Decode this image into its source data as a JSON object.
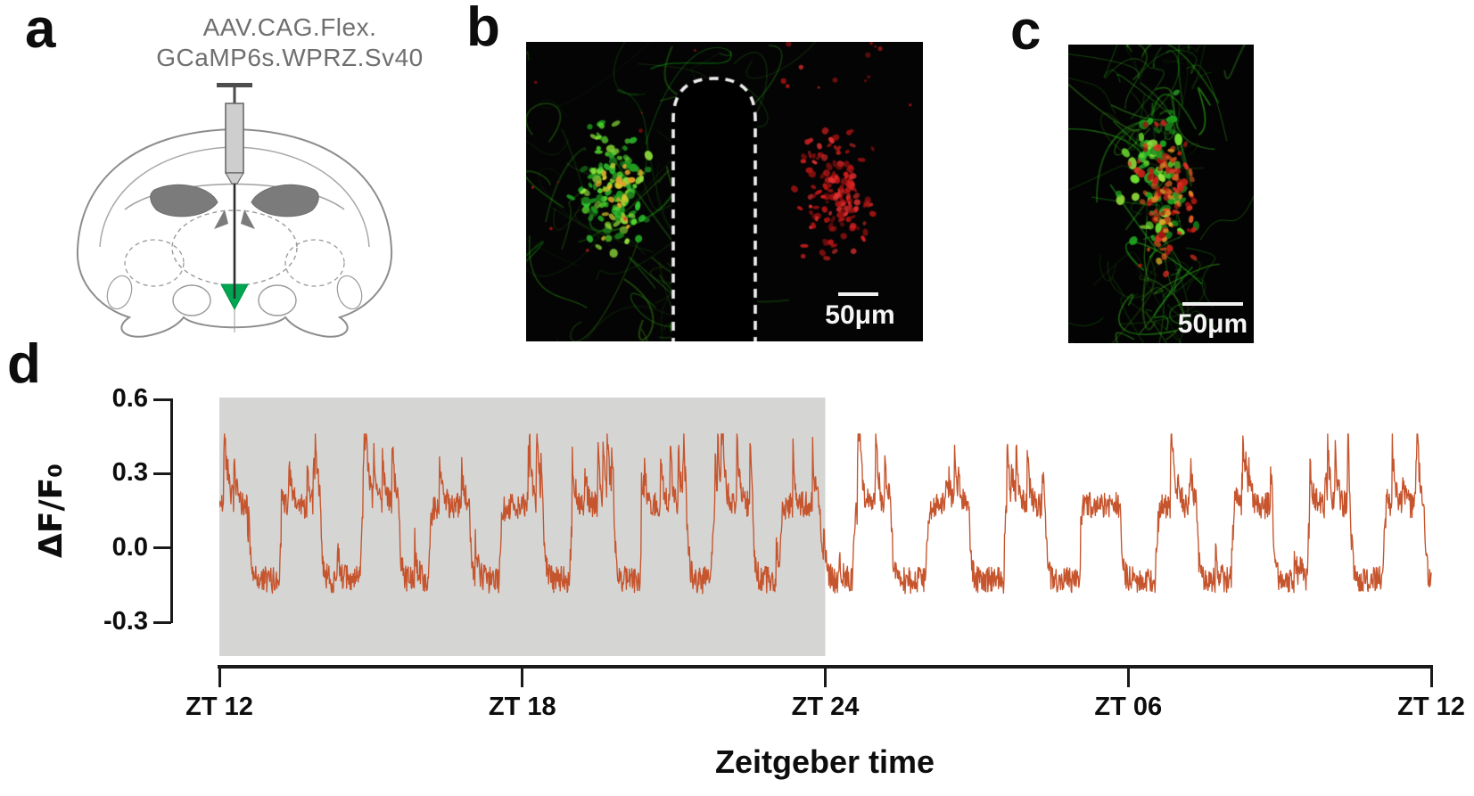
{
  "figure_labels": {
    "a": "a",
    "b": "b",
    "c": "c",
    "d": "d"
  },
  "panel_a": {
    "injection_line1": "AAV.CAG.Flex.",
    "injection_line2": "GCaMP6s.WPRZ.Sv40",
    "injection_site_color": "#00a651"
  },
  "panel_b": {
    "scale_bar_label": "50μm",
    "gcamp_color": "#2fc42f",
    "marker_color": "#d42020"
  },
  "panel_c": {
    "scale_bar_label": "50μm"
  },
  "chart_data": {
    "type": "line",
    "title": "",
    "xlabel": "Zeitgeber time",
    "ylabel": "ΔF/F₀",
    "x_tick_labels": [
      "ZT 12",
      "ZT 18",
      "ZT 24",
      "ZT 06",
      "ZT 12"
    ],
    "x_tick_hours": [
      0,
      6,
      12,
      18,
      24
    ],
    "x_range_hours": [
      0,
      24
    ],
    "y_tick_labels": [
      "0.6",
      "0.3",
      "0.0",
      "-0.3"
    ],
    "y_ticks": [
      0.6,
      0.3,
      0.0,
      -0.3
    ],
    "ylim": [
      -0.42,
      0.6
    ],
    "grid": false,
    "legend": "none",
    "line_color": "#c6542c",
    "shading": {
      "from_hour": 0,
      "to_hour": 12,
      "color": "#d5d5d4",
      "spans_ticks": [
        "ZT 12",
        "ZT 24"
      ]
    },
    "trace": {
      "baseline_low": -0.13,
      "burst_high": 0.17,
      "noise_sd": 0.055,
      "spike_max": 0.46,
      "min": -0.28,
      "seed": 42,
      "bursts_hours": [
        [
          0.0,
          0.55
        ],
        [
          1.2,
          2.0
        ],
        [
          2.8,
          3.55
        ],
        [
          4.15,
          4.95
        ],
        [
          5.55,
          6.4
        ],
        [
          6.95,
          7.8
        ],
        [
          8.35,
          9.2
        ],
        [
          9.75,
          10.55
        ],
        [
          11.1,
          11.9
        ],
        [
          12.55,
          13.3
        ],
        [
          14.0,
          14.85
        ],
        [
          15.55,
          16.35
        ],
        [
          17.05,
          17.85
        ],
        [
          18.55,
          19.35
        ],
        [
          20.05,
          20.85
        ],
        [
          21.55,
          22.35
        ],
        [
          23.05,
          23.85
        ]
      ]
    }
  }
}
